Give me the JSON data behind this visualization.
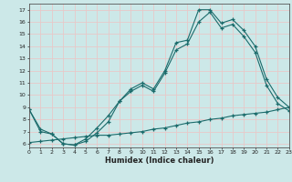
{
  "xlabel": "Humidex (Indice chaleur)",
  "xlim": [
    0,
    23
  ],
  "ylim": [
    5.7,
    17.5
  ],
  "xticks": [
    0,
    1,
    2,
    3,
    4,
    5,
    6,
    7,
    8,
    9,
    10,
    11,
    12,
    13,
    14,
    15,
    16,
    17,
    18,
    19,
    20,
    21,
    22,
    23
  ],
  "yticks": [
    6,
    7,
    8,
    9,
    10,
    11,
    12,
    13,
    14,
    15,
    16,
    17
  ],
  "bg_color": "#cce8e8",
  "line_color": "#1a6b6b",
  "grid_color": "#e8c8c8",
  "line1_x": [
    0,
    1,
    2,
    3,
    4,
    5,
    6,
    7,
    8,
    9,
    10,
    11,
    12,
    13,
    14,
    15,
    16,
    17,
    18,
    19,
    20,
    21,
    22,
    23
  ],
  "line1_y": [
    8.8,
    7.2,
    6.8,
    6.0,
    5.9,
    6.4,
    7.3,
    8.3,
    9.5,
    10.5,
    11.0,
    10.5,
    12.0,
    14.3,
    14.5,
    17.0,
    17.0,
    15.9,
    16.2,
    15.3,
    14.0,
    11.3,
    9.8,
    9.0
  ],
  "line2_x": [
    0,
    1,
    2,
    3,
    4,
    5,
    6,
    7,
    8,
    9,
    10,
    11,
    12,
    13,
    14,
    15,
    16,
    17,
    18,
    19,
    20,
    21,
    22,
    23
  ],
  "line2_y": [
    8.8,
    7.0,
    6.8,
    6.0,
    5.9,
    6.2,
    6.9,
    7.8,
    9.5,
    10.3,
    10.8,
    10.3,
    11.8,
    13.7,
    14.2,
    16.0,
    16.8,
    15.5,
    15.8,
    14.8,
    13.5,
    10.8,
    9.3,
    8.7
  ],
  "line3_x": [
    0,
    1,
    2,
    3,
    4,
    5,
    6,
    7,
    8,
    9,
    10,
    11,
    12,
    13,
    14,
    15,
    16,
    17,
    18,
    19,
    20,
    21,
    22,
    23
  ],
  "line3_y": [
    6.1,
    6.2,
    6.3,
    6.4,
    6.5,
    6.6,
    6.7,
    6.7,
    6.8,
    6.9,
    7.0,
    7.2,
    7.3,
    7.5,
    7.7,
    7.8,
    8.0,
    8.1,
    8.3,
    8.4,
    8.5,
    8.6,
    8.8,
    9.0
  ]
}
